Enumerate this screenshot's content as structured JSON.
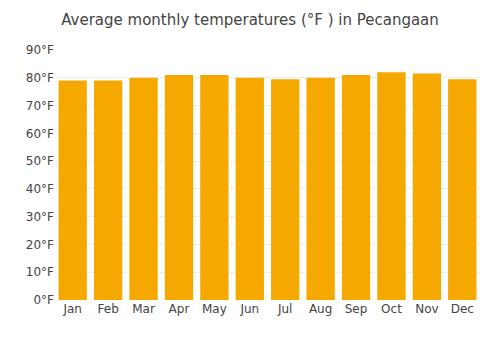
{
  "chart_data": {
    "type": "bar",
    "title": "Average monthly temperatures (°F ) in Pecangaan",
    "categories": [
      "Jan",
      "Feb",
      "Mar",
      "Apr",
      "May",
      "Jun",
      "Jul",
      "Aug",
      "Sep",
      "Oct",
      "Nov",
      "Dec"
    ],
    "values": [
      79,
      79,
      80,
      81,
      81,
      80,
      79.5,
      80,
      81,
      82,
      81.5,
      79.5
    ],
    "color": "#F5A800",
    "ylim": [
      0,
      90
    ],
    "yticks": [
      {
        "value": 0,
        "label": "0°F"
      },
      {
        "value": 10,
        "label": "10°F"
      },
      {
        "value": 20,
        "label": "20°F"
      },
      {
        "value": 30,
        "label": "30°F"
      },
      {
        "value": 40,
        "label": "40°F"
      },
      {
        "value": 50,
        "label": "50°F"
      },
      {
        "value": 60,
        "label": "60°F"
      },
      {
        "value": 70,
        "label": "70°F"
      },
      {
        "value": 80,
        "label": "80°F"
      },
      {
        "value": 90,
        "label": "90°F"
      }
    ],
    "grid": true
  }
}
